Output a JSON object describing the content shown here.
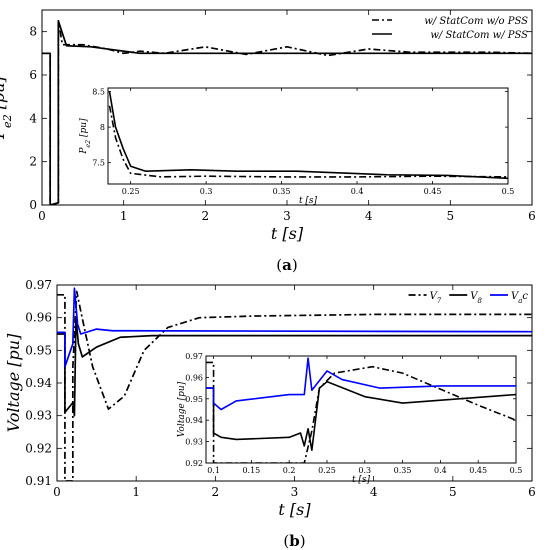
{
  "chart_data": [
    {
      "type": "line",
      "panel_label": "a",
      "ylabel": "P_{e2} [pu]",
      "xlabel": "t [s]",
      "xlim": [
        0,
        6
      ],
      "ylim": [
        0,
        9
      ],
      "xticks": [
        0,
        1,
        2,
        3,
        4,
        5,
        6
      ],
      "yticks": [
        0,
        2,
        4,
        6,
        8
      ],
      "legend_position": "top-right",
      "series": [
        {
          "name": "w/ StatCom w/o PSS",
          "style": "dashdot",
          "color": "#000000",
          "points": [
            [
              0,
              7
            ],
            [
              0.1,
              7
            ],
            [
              0.1,
              0
            ],
            [
              0.2,
              0.1
            ],
            [
              0.2,
              8.5
            ],
            [
              0.25,
              7.4
            ],
            [
              0.5,
              7.4
            ],
            [
              0.8,
              7.2
            ],
            [
              1.0,
              7.0
            ],
            [
              1.2,
              7.1
            ],
            [
              1.5,
              7.0
            ],
            [
              2.0,
              7.3
            ],
            [
              2.5,
              6.95
            ],
            [
              3.0,
              7.3
            ],
            [
              3.5,
              6.9
            ],
            [
              4.0,
              7.2
            ],
            [
              4.5,
              7.05
            ],
            [
              5.0,
              7.05
            ],
            [
              5.5,
              7.05
            ],
            [
              6.0,
              7.0
            ]
          ]
        },
        {
          "name": "w/ StatCom w/ PSS",
          "style": "solid",
          "color": "#000000",
          "points": [
            [
              0,
              7
            ],
            [
              0.1,
              7
            ],
            [
              0.1,
              0
            ],
            [
              0.2,
              0.1
            ],
            [
              0.2,
              8.5
            ],
            [
              0.3,
              7.35
            ],
            [
              0.6,
              7.3
            ],
            [
              0.9,
              7.15
            ],
            [
              1.2,
              7.0
            ],
            [
              6.0,
              7.0
            ]
          ]
        }
      ],
      "inset": {
        "xlabel": "t [s]",
        "ylabel": "P_{e2} [pu]",
        "xlim": [
          0.235,
          0.5
        ],
        "ylim": [
          7.2,
          8.55
        ],
        "xticks": [
          0.25,
          0.3,
          0.35,
          0.4,
          0.45,
          0.5
        ],
        "yticks": [
          7.5,
          8,
          8.5
        ],
        "series": [
          {
            "style": "dashdot",
            "points": [
              [
                0.236,
                8.3
              ],
              [
                0.24,
                7.85
              ],
              [
                0.245,
                7.55
              ],
              [
                0.25,
                7.35
              ],
              [
                0.27,
                7.3
              ],
              [
                0.3,
                7.31
              ],
              [
                0.35,
                7.3
              ],
              [
                0.4,
                7.3
              ],
              [
                0.45,
                7.31
              ],
              [
                0.5,
                7.3
              ]
            ]
          },
          {
            "style": "solid",
            "points": [
              [
                0.236,
                8.5
              ],
              [
                0.24,
                8.0
              ],
              [
                0.245,
                7.7
              ],
              [
                0.25,
                7.45
              ],
              [
                0.26,
                7.38
              ],
              [
                0.29,
                7.4
              ],
              [
                0.32,
                7.38
              ],
              [
                0.36,
                7.38
              ],
              [
                0.42,
                7.33
              ],
              [
                0.46,
                7.32
              ],
              [
                0.5,
                7.28
              ]
            ]
          }
        ]
      }
    },
    {
      "type": "line",
      "panel_label": "b",
      "ylabel": "Voltage [pu]",
      "xlabel": "t [s]",
      "xlim": [
        0,
        6
      ],
      "ylim": [
        0.91,
        0.97
      ],
      "xticks": [
        0,
        1,
        2,
        3,
        4,
        5,
        6
      ],
      "yticks": [
        0.91,
        0.92,
        0.93,
        0.94,
        0.95,
        0.96,
        0.97
      ],
      "legend_position": "top-right",
      "series": [
        {
          "name": "V_7",
          "style": "dashdot",
          "color": "#000000",
          "points": [
            [
              0,
              0.967
            ],
            [
              0.1,
              0.967
            ],
            [
              0.1,
              0.91
            ],
            [
              0.2,
              0.91
            ],
            [
              0.2,
              0.945
            ],
            [
              0.25,
              0.968
            ],
            [
              0.3,
              0.962
            ],
            [
              0.45,
              0.945
            ],
            [
              0.65,
              0.932
            ],
            [
              0.85,
              0.936
            ],
            [
              1.1,
              0.95
            ],
            [
              1.4,
              0.957
            ],
            [
              1.8,
              0.96
            ],
            [
              2.5,
              0.9605
            ],
            [
              4.0,
              0.961
            ],
            [
              6.0,
              0.961
            ]
          ]
        },
        {
          "name": "V_8",
          "style": "solid",
          "color": "#000000",
          "points": [
            [
              0,
              0.955
            ],
            [
              0.1,
              0.955
            ],
            [
              0.1,
              0.931
            ],
            [
              0.2,
              0.934
            ],
            [
              0.22,
              0.93
            ],
            [
              0.24,
              0.96
            ],
            [
              0.27,
              0.952
            ],
            [
              0.32,
              0.948
            ],
            [
              0.5,
              0.951
            ],
            [
              0.8,
              0.954
            ],
            [
              1.2,
              0.9545
            ],
            [
              6.0,
              0.9545
            ]
          ]
        },
        {
          "name": "V_ac",
          "style": "solid",
          "color": "#0000ff",
          "points": [
            [
              0,
              0.9555
            ],
            [
              0.1,
              0.9555
            ],
            [
              0.1,
              0.945
            ],
            [
              0.2,
              0.952
            ],
            [
              0.22,
              0.969
            ],
            [
              0.26,
              0.958
            ],
            [
              0.3,
              0.955
            ],
            [
              0.5,
              0.9565
            ],
            [
              0.7,
              0.956
            ],
            [
              6.0,
              0.9557
            ]
          ]
        }
      ],
      "inset": {
        "xlabel": "t [s]",
        "ylabel": "Voltage [pu]",
        "xlim": [
          0.09,
          0.5
        ],
        "ylim": [
          0.92,
          0.97
        ],
        "xticks": [
          0.1,
          0.15,
          0.2,
          0.25,
          0.3,
          0.35,
          0.4,
          0.45,
          0.5
        ],
        "yticks": [
          0.92,
          0.93,
          0.94,
          0.95,
          0.96,
          0.97
        ],
        "series": [
          {
            "style": "dashdot",
            "color": "#000000",
            "points": [
              [
                0.09,
                0.967
              ],
              [
                0.1,
                0.967
              ],
              [
                0.1,
                0.92
              ],
              [
                0.22,
                0.92
              ],
              [
                0.23,
                0.935
              ],
              [
                0.24,
                0.955
              ],
              [
                0.26,
                0.962
              ],
              [
                0.31,
                0.965
              ],
              [
                0.35,
                0.962
              ],
              [
                0.45,
                0.947
              ],
              [
                0.5,
                0.94
              ]
            ]
          },
          {
            "style": "solid",
            "color": "#000000",
            "points": [
              [
                0.09,
                0.955
              ],
              [
                0.1,
                0.955
              ],
              [
                0.1,
                0.934
              ],
              [
                0.11,
                0.932
              ],
              [
                0.13,
                0.931
              ],
              [
                0.2,
                0.932
              ],
              [
                0.215,
                0.934
              ],
              [
                0.22,
                0.928
              ],
              [
                0.225,
                0.936
              ],
              [
                0.23,
                0.926
              ],
              [
                0.24,
                0.955
              ],
              [
                0.25,
                0.958
              ],
              [
                0.3,
                0.951
              ],
              [
                0.35,
                0.948
              ],
              [
                0.5,
                0.952
              ]
            ]
          },
          {
            "style": "solid",
            "color": "#0000ff",
            "points": [
              [
                0.09,
                0.955
              ],
              [
                0.1,
                0.955
              ],
              [
                0.1,
                0.948
              ],
              [
                0.11,
                0.945
              ],
              [
                0.13,
                0.949
              ],
              [
                0.2,
                0.952
              ],
              [
                0.22,
                0.952
              ],
              [
                0.225,
                0.969
              ],
              [
                0.23,
                0.954
              ],
              [
                0.25,
                0.963
              ],
              [
                0.27,
                0.959
              ],
              [
                0.32,
                0.955
              ],
              [
                0.4,
                0.956
              ],
              [
                0.5,
                0.956
              ]
            ]
          }
        ]
      }
    }
  ]
}
